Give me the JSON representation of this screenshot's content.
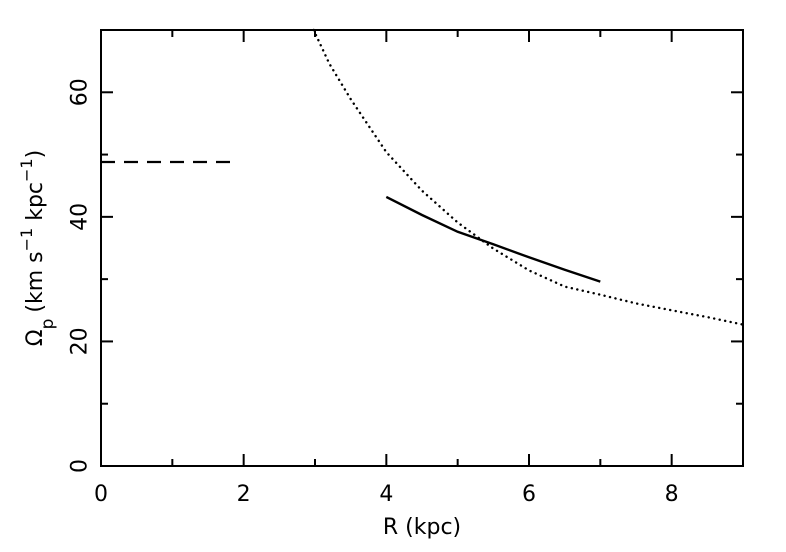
{
  "chart_data": {
    "type": "line",
    "xlabel": "R (kpc)",
    "ylabel": {
      "symbol": "Ω",
      "subscript": "p",
      "units_open": "(km s",
      "exp1": "−1",
      "units_mid": " kpc",
      "exp2": "−1",
      "units_close": ")"
    },
    "xlim": [
      0,
      9
    ],
    "ylim": [
      0,
      70
    ],
    "xticks": [
      {
        "value": 0,
        "label": "0"
      },
      {
        "value": 2,
        "label": "2"
      },
      {
        "value": 4,
        "label": "4"
      },
      {
        "value": 6,
        "label": "6"
      },
      {
        "value": 8,
        "label": "8"
      }
    ],
    "yticks": [
      {
        "value": 0,
        "label": "0"
      },
      {
        "value": 20,
        "label": "20"
      },
      {
        "value": 40,
        "label": "40"
      },
      {
        "value": 60,
        "label": "60"
      }
    ],
    "x_minor_step": 1,
    "y_minor_step": 10,
    "grid": false,
    "series": [
      {
        "style": "dashed",
        "points": [
          [
            0,
            48.8
          ],
          [
            1.92,
            48.8
          ]
        ]
      },
      {
        "style": "solid",
        "points": [
          [
            4.0,
            43.2
          ],
          [
            4.5,
            40.3
          ],
          [
            5.0,
            37.6
          ],
          [
            5.5,
            35.6
          ],
          [
            6.0,
            33.5
          ],
          [
            6.5,
            31.5
          ],
          [
            7.0,
            29.6
          ]
        ]
      },
      {
        "style": "dotted",
        "points": [
          [
            2.98,
            70
          ],
          [
            3.2,
            64.6
          ],
          [
            3.5,
            58.9
          ],
          [
            4.0,
            50.4
          ],
          [
            4.5,
            44.2
          ],
          [
            5.0,
            39.1
          ],
          [
            5.5,
            34.9
          ],
          [
            6.0,
            31.4
          ],
          [
            6.5,
            28.8
          ],
          [
            7.0,
            27.5
          ],
          [
            7.5,
            26.1
          ],
          [
            8.0,
            25.0
          ],
          [
            8.5,
            23.9
          ],
          [
            9.0,
            22.7
          ]
        ]
      }
    ]
  }
}
